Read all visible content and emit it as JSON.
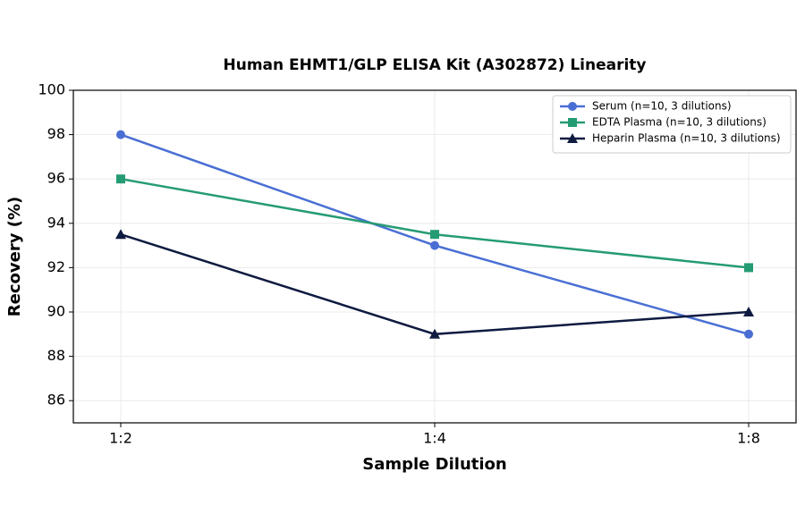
{
  "chart_data": {
    "type": "line",
    "title": "Human EHMT1/GLP ELISA Kit (A302872) Linearity",
    "x_label": "Sample Dilution",
    "y_label": "Recovery (%)",
    "categories": [
      "1:2",
      "1:4",
      "1:8"
    ],
    "series": [
      {
        "name": "Serum (n=10, 3 dilutions)",
        "color": "#4a6fd4",
        "marker": "circle",
        "values": [
          98,
          93,
          89
        ]
      },
      {
        "name": "EDTA Plasma (n=10, 3 dilutions)",
        "color": "#259b74",
        "marker": "square",
        "values": [
          96,
          93.5,
          92
        ]
      },
      {
        "name": "Heparin Plasma (n=10, 3 dilutions)",
        "color": "#0e1a40",
        "marker": "triangle",
        "values": [
          93.5,
          89,
          90
        ]
      }
    ],
    "ylim": [
      85,
      100
    ],
    "yticks": [
      86,
      88,
      90,
      92,
      94,
      96,
      98,
      100
    ],
    "grid": true,
    "legend": "upper right"
  }
}
